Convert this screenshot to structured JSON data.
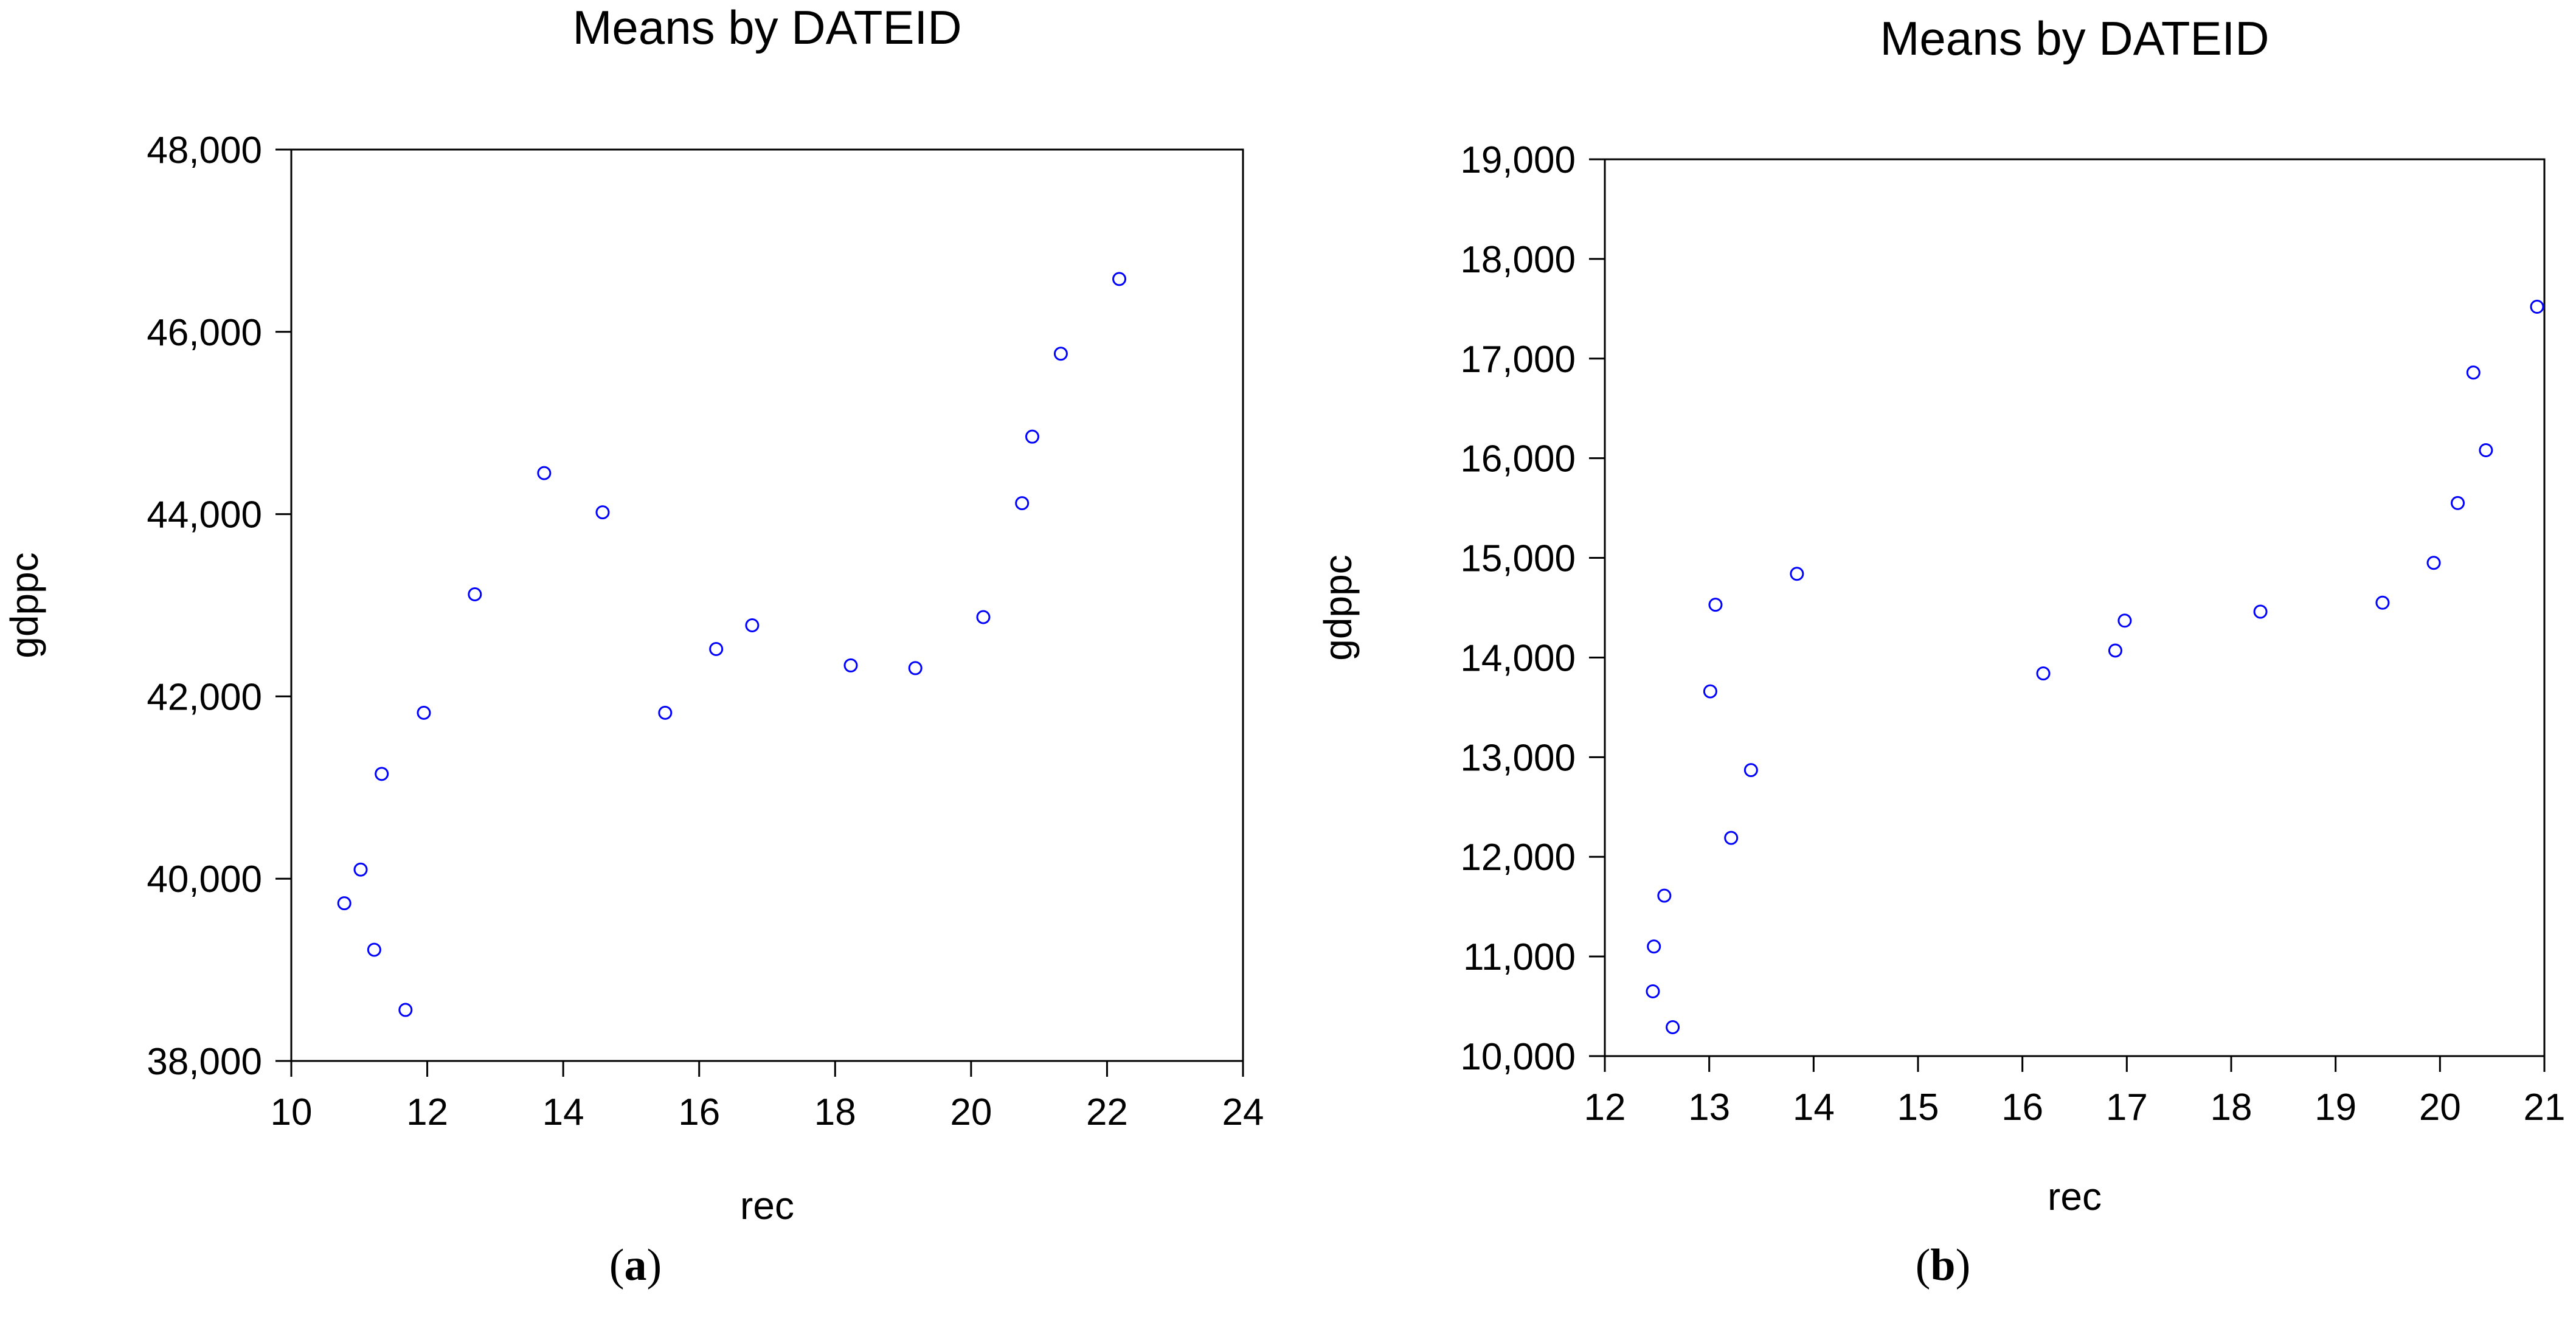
{
  "colors": {
    "marker": "#0000ff",
    "axis": "#000000",
    "background": "#ffffff"
  },
  "chart_data": [
    {
      "type": "scatter",
      "title": "Means by DATEID",
      "xlabel": "rec",
      "ylabel": "gdppc",
      "caption_letter": "a",
      "xlim": [
        10,
        24
      ],
      "ylim": [
        38000,
        48000
      ],
      "xticks": [
        10,
        12,
        14,
        16,
        18,
        20,
        22,
        24
      ],
      "xtick_labels": [
        "10",
        "12",
        "14",
        "16",
        "18",
        "20",
        "22",
        "24"
      ],
      "yticks": [
        38000,
        40000,
        42000,
        44000,
        46000,
        48000
      ],
      "ytick_labels": [
        "38,000",
        "40,000",
        "42,000",
        "44,000",
        "46,000",
        "48,000"
      ],
      "x": [
        10.78,
        11.02,
        11.22,
        11.33,
        11.68,
        11.95,
        12.7,
        13.72,
        14.58,
        15.5,
        16.25,
        16.78,
        18.23,
        19.18,
        20.18,
        20.75,
        20.9,
        21.32,
        22.18
      ],
      "y": [
        39730,
        40100,
        39220,
        41150,
        38560,
        41820,
        43120,
        44450,
        44020,
        41820,
        42520,
        42780,
        42340,
        42310,
        42870,
        44120,
        44850,
        45760,
        46580
      ]
    },
    {
      "type": "scatter",
      "title": "Means by DATEID",
      "xlabel": "rec",
      "ylabel": "gdppc",
      "caption_letter": "b",
      "xlim": [
        12,
        21
      ],
      "ylim": [
        10000,
        19000
      ],
      "xticks": [
        12,
        13,
        14,
        15,
        16,
        17,
        18,
        19,
        20,
        21
      ],
      "xtick_labels": [
        "12",
        "13",
        "14",
        "15",
        "16",
        "17",
        "18",
        "19",
        "20",
        "21"
      ],
      "yticks": [
        10000,
        11000,
        12000,
        13000,
        14000,
        15000,
        16000,
        17000,
        18000,
        19000
      ],
      "ytick_labels": [
        "10,000",
        "11,000",
        "12,000",
        "13,000",
        "14,000",
        "15,000",
        "16,000",
        "17,000",
        "18,000",
        "19,000"
      ],
      "x": [
        12.46,
        12.47,
        12.57,
        12.65,
        13.01,
        13.06,
        13.21,
        13.4,
        13.84,
        16.2,
        16.89,
        16.98,
        18.28,
        19.45,
        19.94,
        20.17,
        20.32,
        20.44,
        20.93
      ],
      "y": [
        10650,
        11100,
        11610,
        10290,
        13660,
        14530,
        12190,
        12870,
        14840,
        13840,
        14070,
        14370,
        14460,
        14550,
        14950,
        15550,
        16860,
        16080,
        17520
      ]
    }
  ]
}
